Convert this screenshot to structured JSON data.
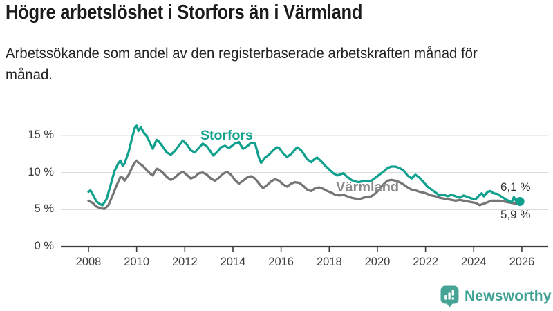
{
  "chart_data": {
    "type": "line",
    "title": "Högre arbetslöshet i Storfors än i Värmland",
    "subtitle": "Arbetssökande som andel av den registerbaserade arbetskraften månad för månad.",
    "unit": "%",
    "grid": "horizontal",
    "legend_position": "inline-labels",
    "x_range": [
      2008,
      2026.2
    ],
    "y_range": [
      0,
      17
    ],
    "x_axis": {
      "ticks": [
        {
          "value": 2008,
          "label": "2008"
        },
        {
          "value": 2010,
          "label": "2010"
        },
        {
          "value": 2012,
          "label": "2012"
        },
        {
          "value": 2014,
          "label": "2014"
        },
        {
          "value": 2016,
          "label": "2016"
        },
        {
          "value": 2018,
          "label": "2018"
        },
        {
          "value": 2020,
          "label": "2020"
        },
        {
          "value": 2022,
          "label": "2022"
        },
        {
          "value": 2024,
          "label": "2024"
        },
        {
          "value": 2026,
          "label": "2026"
        }
      ]
    },
    "y_axis": {
      "ticks": [
        {
          "value": 0,
          "label": "0 %"
        },
        {
          "value": 5,
          "label": "5 %"
        },
        {
          "value": 10,
          "label": "10 %"
        },
        {
          "value": 15,
          "label": "15 %"
        }
      ]
    },
    "series": [
      {
        "name": "Storfors",
        "color": "#10A08E",
        "end_label": "6,1 %",
        "end_value": 6.1,
        "end_dot": true,
        "points": [
          [
            2008.0,
            7.4
          ],
          [
            2008.08,
            7.6
          ],
          [
            2008.17,
            7.1
          ],
          [
            2008.33,
            6.1
          ],
          [
            2008.5,
            5.7
          ],
          [
            2008.58,
            5.6
          ],
          [
            2008.75,
            6.4
          ],
          [
            2008.92,
            8.3
          ],
          [
            2009.08,
            10.2
          ],
          [
            2009.25,
            11.3
          ],
          [
            2009.33,
            11.6
          ],
          [
            2009.42,
            10.9
          ],
          [
            2009.5,
            11.2
          ],
          [
            2009.67,
            12.8
          ],
          [
            2009.83,
            14.9
          ],
          [
            2009.92,
            16.0
          ],
          [
            2010.0,
            16.3
          ],
          [
            2010.08,
            15.6
          ],
          [
            2010.17,
            16.1
          ],
          [
            2010.33,
            15.2
          ],
          [
            2010.42,
            14.9
          ],
          [
            2010.58,
            13.8
          ],
          [
            2010.67,
            13.2
          ],
          [
            2010.83,
            14.4
          ],
          [
            2010.92,
            14.2
          ],
          [
            2011.08,
            13.5
          ],
          [
            2011.25,
            12.7
          ],
          [
            2011.42,
            12.4
          ],
          [
            2011.58,
            12.9
          ],
          [
            2011.75,
            13.6
          ],
          [
            2011.92,
            14.3
          ],
          [
            2012.08,
            13.8
          ],
          [
            2012.25,
            13.0
          ],
          [
            2012.42,
            12.7
          ],
          [
            2012.58,
            13.3
          ],
          [
            2012.75,
            13.9
          ],
          [
            2012.92,
            13.5
          ],
          [
            2013.08,
            12.8
          ],
          [
            2013.17,
            12.3
          ],
          [
            2013.33,
            12.7
          ],
          [
            2013.5,
            13.4
          ],
          [
            2013.67,
            13.6
          ],
          [
            2013.83,
            13.3
          ],
          [
            2013.92,
            13.5
          ],
          [
            2014.08,
            13.9
          ],
          [
            2014.25,
            14.1
          ],
          [
            2014.42,
            13.2
          ],
          [
            2014.58,
            13.5
          ],
          [
            2014.75,
            14.0
          ],
          [
            2014.92,
            13.9
          ],
          [
            2015.08,
            12.0
          ],
          [
            2015.17,
            11.3
          ],
          [
            2015.33,
            12.0
          ],
          [
            2015.5,
            12.4
          ],
          [
            2015.67,
            13.0
          ],
          [
            2015.83,
            13.4
          ],
          [
            2015.92,
            13.3
          ],
          [
            2016.08,
            12.6
          ],
          [
            2016.25,
            12.1
          ],
          [
            2016.42,
            12.5
          ],
          [
            2016.58,
            13.1
          ],
          [
            2016.67,
            13.4
          ],
          [
            2016.83,
            13.0
          ],
          [
            2016.92,
            12.6
          ],
          [
            2017.08,
            11.8
          ],
          [
            2017.25,
            11.4
          ],
          [
            2017.42,
            11.9
          ],
          [
            2017.5,
            12.0
          ],
          [
            2017.67,
            11.5
          ],
          [
            2017.83,
            10.9
          ],
          [
            2018.0,
            10.4
          ],
          [
            2018.17,
            9.9
          ],
          [
            2018.33,
            9.6
          ],
          [
            2018.5,
            9.8
          ],
          [
            2018.58,
            9.9
          ],
          [
            2018.75,
            9.4
          ],
          [
            2018.92,
            9.0
          ],
          [
            2019.08,
            8.8
          ],
          [
            2019.25,
            8.7
          ],
          [
            2019.42,
            8.9
          ],
          [
            2019.58,
            8.8
          ],
          [
            2019.75,
            8.9
          ],
          [
            2019.92,
            9.3
          ],
          [
            2020.08,
            9.7
          ],
          [
            2020.25,
            10.1
          ],
          [
            2020.42,
            10.6
          ],
          [
            2020.58,
            10.8
          ],
          [
            2020.75,
            10.8
          ],
          [
            2020.92,
            10.6
          ],
          [
            2021.08,
            10.3
          ],
          [
            2021.25,
            9.6
          ],
          [
            2021.42,
            9.2
          ],
          [
            2021.58,
            9.7
          ],
          [
            2021.75,
            9.3
          ],
          [
            2021.92,
            8.7
          ],
          [
            2022.08,
            8.1
          ],
          [
            2022.25,
            7.7
          ],
          [
            2022.42,
            7.3
          ],
          [
            2022.58,
            6.9
          ],
          [
            2022.75,
            7.0
          ],
          [
            2022.92,
            6.8
          ],
          [
            2023.08,
            7.0
          ],
          [
            2023.25,
            6.8
          ],
          [
            2023.42,
            6.6
          ],
          [
            2023.58,
            6.9
          ],
          [
            2023.75,
            6.7
          ],
          [
            2023.92,
            6.5
          ],
          [
            2024.08,
            6.4
          ],
          [
            2024.25,
            7.0
          ],
          [
            2024.33,
            7.2
          ],
          [
            2024.42,
            6.8
          ],
          [
            2024.58,
            7.4
          ],
          [
            2024.7,
            7.5
          ],
          [
            2024.83,
            7.2
          ],
          [
            2025.0,
            7.1
          ],
          [
            2025.17,
            6.7
          ],
          [
            2025.33,
            6.4
          ],
          [
            2025.5,
            6.1
          ],
          [
            2025.58,
            6.0
          ],
          [
            2025.67,
            6.7
          ],
          [
            2025.75,
            6.2
          ],
          [
            2025.83,
            5.9
          ],
          [
            2025.92,
            6.1
          ]
        ]
      },
      {
        "name": "Värmland",
        "color": "#757575",
        "end_label": "5,9 %",
        "end_value": 5.9,
        "end_dot": false,
        "points": [
          [
            2008.0,
            6.2
          ],
          [
            2008.17,
            5.9
          ],
          [
            2008.33,
            5.4
          ],
          [
            2008.5,
            5.2
          ],
          [
            2008.67,
            5.1
          ],
          [
            2008.83,
            5.6
          ],
          [
            2009.0,
            6.9
          ],
          [
            2009.17,
            8.3
          ],
          [
            2009.33,
            9.4
          ],
          [
            2009.42,
            9.3
          ],
          [
            2009.5,
            8.9
          ],
          [
            2009.67,
            9.7
          ],
          [
            2009.83,
            10.8
          ],
          [
            2009.92,
            11.3
          ],
          [
            2010.0,
            11.6
          ],
          [
            2010.08,
            11.3
          ],
          [
            2010.25,
            10.9
          ],
          [
            2010.42,
            10.3
          ],
          [
            2010.58,
            9.8
          ],
          [
            2010.67,
            9.6
          ],
          [
            2010.83,
            10.5
          ],
          [
            2010.92,
            10.4
          ],
          [
            2011.08,
            10.0
          ],
          [
            2011.25,
            9.4
          ],
          [
            2011.42,
            9.0
          ],
          [
            2011.58,
            9.3
          ],
          [
            2011.75,
            9.8
          ],
          [
            2011.92,
            10.1
          ],
          [
            2012.08,
            9.7
          ],
          [
            2012.25,
            9.2
          ],
          [
            2012.42,
            9.4
          ],
          [
            2012.58,
            9.9
          ],
          [
            2012.75,
            10.0
          ],
          [
            2012.92,
            9.7
          ],
          [
            2013.08,
            9.2
          ],
          [
            2013.25,
            8.9
          ],
          [
            2013.42,
            9.3
          ],
          [
            2013.58,
            9.8
          ],
          [
            2013.75,
            10.1
          ],
          [
            2013.92,
            9.7
          ],
          [
            2014.08,
            9.0
          ],
          [
            2014.25,
            8.5
          ],
          [
            2014.42,
            8.9
          ],
          [
            2014.58,
            9.3
          ],
          [
            2014.75,
            9.5
          ],
          [
            2014.92,
            9.2
          ],
          [
            2015.08,
            8.5
          ],
          [
            2015.25,
            7.9
          ],
          [
            2015.42,
            8.3
          ],
          [
            2015.58,
            8.8
          ],
          [
            2015.75,
            9.1
          ],
          [
            2015.92,
            8.9
          ],
          [
            2016.08,
            8.4
          ],
          [
            2016.25,
            8.1
          ],
          [
            2016.42,
            8.5
          ],
          [
            2016.58,
            8.7
          ],
          [
            2016.75,
            8.6
          ],
          [
            2016.92,
            8.2
          ],
          [
            2017.08,
            7.7
          ],
          [
            2017.25,
            7.5
          ],
          [
            2017.42,
            7.9
          ],
          [
            2017.58,
            8.0
          ],
          [
            2017.75,
            7.8
          ],
          [
            2017.92,
            7.5
          ],
          [
            2018.08,
            7.3
          ],
          [
            2018.25,
            7.0
          ],
          [
            2018.42,
            6.9
          ],
          [
            2018.58,
            7.0
          ],
          [
            2018.75,
            6.8
          ],
          [
            2018.92,
            6.6
          ],
          [
            2019.08,
            6.5
          ],
          [
            2019.25,
            6.4
          ],
          [
            2019.42,
            6.6
          ],
          [
            2019.58,
            6.7
          ],
          [
            2019.75,
            6.8
          ],
          [
            2019.92,
            7.2
          ],
          [
            2020.08,
            7.7
          ],
          [
            2020.25,
            8.4
          ],
          [
            2020.42,
            8.9
          ],
          [
            2020.58,
            9.0
          ],
          [
            2020.75,
            8.9
          ],
          [
            2020.92,
            8.7
          ],
          [
            2021.08,
            8.4
          ],
          [
            2021.25,
            8.0
          ],
          [
            2021.42,
            7.7
          ],
          [
            2021.58,
            7.6
          ],
          [
            2021.75,
            7.4
          ],
          [
            2021.92,
            7.3
          ],
          [
            2022.08,
            7.1
          ],
          [
            2022.25,
            6.9
          ],
          [
            2022.42,
            6.8
          ],
          [
            2022.58,
            6.6
          ],
          [
            2022.75,
            6.5
          ],
          [
            2022.92,
            6.4
          ],
          [
            2023.08,
            6.3
          ],
          [
            2023.25,
            6.2
          ],
          [
            2023.42,
            6.3
          ],
          [
            2023.58,
            6.2
          ],
          [
            2023.75,
            6.1
          ],
          [
            2023.92,
            6.0
          ],
          [
            2024.08,
            5.9
          ],
          [
            2024.25,
            5.6
          ],
          [
            2024.42,
            5.8
          ],
          [
            2024.58,
            6.0
          ],
          [
            2024.75,
            6.2
          ],
          [
            2024.92,
            6.2
          ],
          [
            2025.08,
            6.2
          ],
          [
            2025.25,
            6.1
          ],
          [
            2025.42,
            6.0
          ],
          [
            2025.58,
            5.9
          ],
          [
            2025.75,
            5.8
          ],
          [
            2025.92,
            5.9
          ]
        ]
      }
    ],
    "colors": {
      "grid": "#DBDBDB",
      "axis": "#3A3A3A",
      "axis_text": "#3D3D3D",
      "annotation_text": "#2E2E2E"
    }
  },
  "branding": {
    "wordmark": "Newsworthy",
    "logo_icon": "bar-chart-speech-bubble",
    "color": "#3EA093"
  }
}
